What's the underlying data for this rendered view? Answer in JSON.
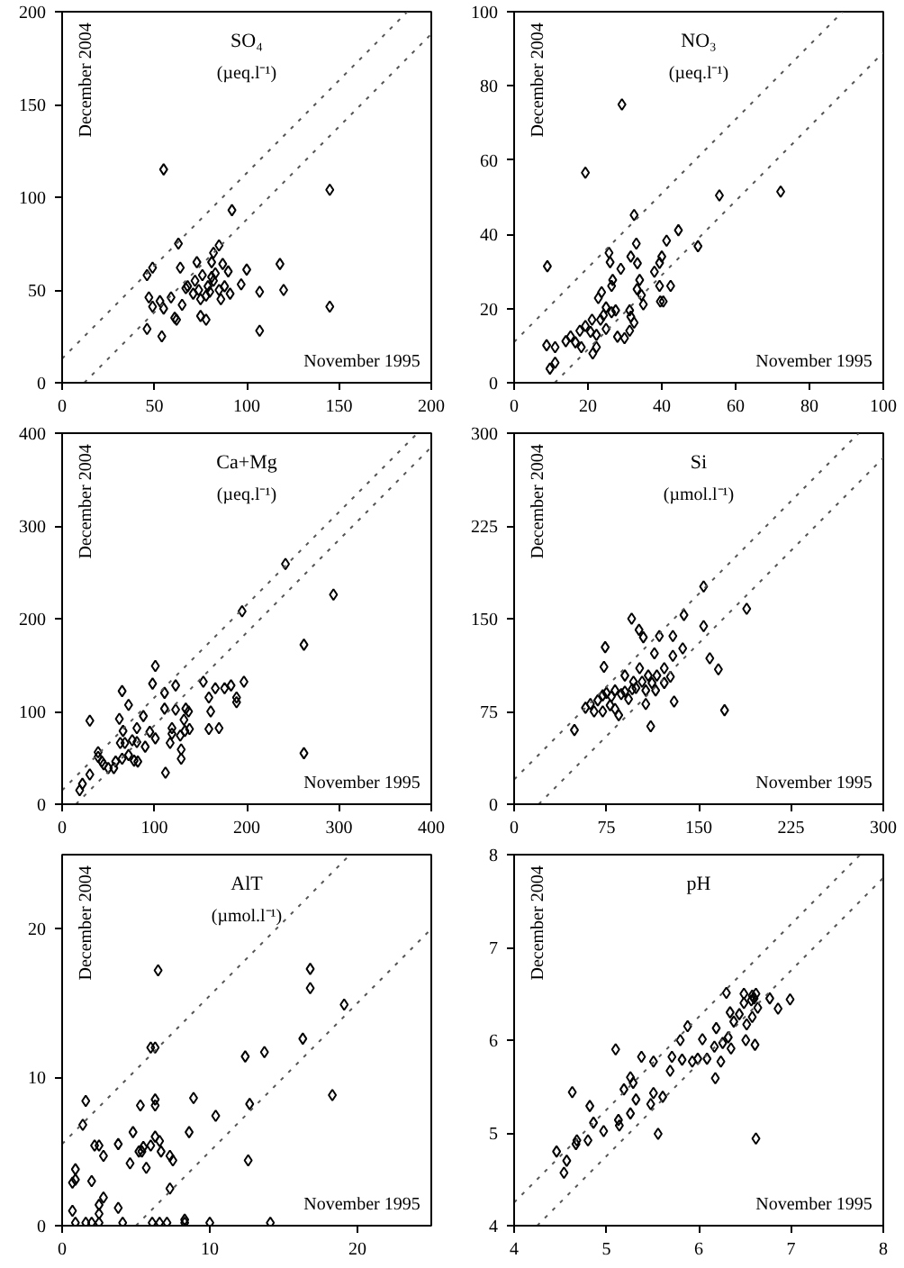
{
  "chart_data": [
    {
      "type": "scatter",
      "title": "SO₄",
      "subtitle": "(µeq.l⁻¹)",
      "xlabel": "November 1995",
      "ylabel": "December 2004",
      "xlim": [
        0,
        200
      ],
      "ylim": [
        0,
        200
      ],
      "xticks": [
        0,
        50,
        100,
        150,
        200
      ],
      "yticks": [
        0,
        50,
        100,
        150,
        200
      ],
      "marker": "diamond",
      "grid": false,
      "series": [
        {
          "color": "#000000",
          "x": [
            55,
            145,
            92,
            63,
            82,
            85,
            49,
            64,
            46,
            73,
            81,
            83,
            90,
            100,
            118,
            97,
            120,
            107,
            145,
            107,
            47,
            49,
            53,
            55,
            59,
            46,
            54,
            61,
            62,
            65,
            68,
            72,
            74,
            75,
            79,
            78,
            75,
            78,
            80,
            82,
            85,
            88,
            86,
            81,
            67,
            76,
            87,
            91,
            71
          ],
          "values": [
            115,
            104,
            93,
            75,
            70,
            74,
            62,
            62,
            58,
            65,
            65,
            59,
            60,
            61,
            64,
            53,
            50,
            49,
            41,
            28,
            46,
            41,
            44,
            40,
            46,
            29,
            25,
            35,
            34,
            42,
            52,
            55,
            50,
            45,
            52,
            47,
            36,
            34,
            49,
            55,
            50,
            52,
            45,
            57,
            51,
            58,
            64,
            48,
            48
          ]
        },
        {
          "type": "line",
          "color": "#555555",
          "line_style": "dotted",
          "marker": "none",
          "x": [
            0,
            187
          ],
          "values": [
            13,
            200
          ]
        },
        {
          "type": "line",
          "color": "#555555",
          "line_style": "dotted",
          "marker": "none",
          "x": [
            12,
            200
          ],
          "values": [
            0,
            188
          ]
        }
      ]
    },
    {
      "type": "scatter",
      "title": "NO₃",
      "subtitle": "(µeq.l⁻¹)",
      "xlabel": "November 1995",
      "ylabel": "December 2004",
      "xlim": [
        0,
        100
      ],
      "ylim": [
        0,
        100
      ],
      "xticks": [
        0,
        20,
        40,
        60,
        80,
        100
      ],
      "yticks": [
        0,
        20,
        40,
        60,
        80,
        100
      ],
      "marker": "diamond",
      "grid": false,
      "series": [
        {
          "color": "#000000",
          "x": [
            9,
            29.2,
            19.3,
            32.5,
            55.6,
            72.2,
            44.5,
            41.3,
            49.8,
            33.1,
            25.7,
            40,
            39.4,
            38,
            31.6,
            33.4,
            28.9,
            26,
            34,
            33.3,
            26.7,
            26.4,
            39.4,
            42.4,
            34.5,
            35,
            39.6,
            40.4,
            23.7,
            22.8,
            31.3,
            31.6,
            32.5,
            26.4,
            24.2,
            23.4,
            21.1,
            19.3,
            20.7,
            17.8,
            15.3,
            14,
            8.8,
            11.1,
            11.1,
            9.7,
            22.3,
            22.3,
            21.3,
            28,
            29.9,
            31.3,
            24.9,
            18.2,
            16.6,
            27.5,
            24.9
          ],
          "values": [
            31.4,
            75,
            56.6,
            45.2,
            50.5,
            51.5,
            41.1,
            38.3,
            36.8,
            37.5,
            35,
            34,
            32.3,
            29.9,
            34,
            32.2,
            30.7,
            32.5,
            27.7,
            25.2,
            27.7,
            26.1,
            26.1,
            26.1,
            23.6,
            21.1,
            21.9,
            21.9,
            24.4,
            22.8,
            19.5,
            17.8,
            16.2,
            19,
            18.2,
            17,
            17,
            15.3,
            13.7,
            14,
            12.5,
            11.2,
            10.1,
            9.6,
            5.4,
            3.8,
            12.9,
            9.6,
            7.9,
            12.4,
            12,
            14,
            14.5,
            9.6,
            10.9,
            19.5,
            20.3
          ]
        },
        {
          "type": "line",
          "color": "#555555",
          "line_style": "dotted",
          "marker": "none",
          "x": [
            0,
            89
          ],
          "values": [
            11,
            100
          ]
        },
        {
          "type": "line",
          "color": "#555555",
          "line_style": "dotted",
          "marker": "none",
          "x": [
            11,
            100
          ],
          "values": [
            0,
            89
          ]
        }
      ]
    },
    {
      "type": "scatter",
      "title": "Ca+Mg",
      "subtitle": "(µeq.l⁻¹)",
      "xlabel": "November 1995",
      "ylabel": "December 2004",
      "xlim": [
        0,
        400
      ],
      "ylim": [
        0,
        400
      ],
      "xticks": [
        0,
        100,
        200,
        300,
        400
      ],
      "yticks": [
        0,
        100,
        200,
        300,
        400
      ],
      "marker": "diamond",
      "grid": false,
      "series": [
        {
          "color": "#000000",
          "x": [
            242,
            294,
            195,
            262,
            262,
            101,
            98,
            153,
            197,
            166,
            183,
            176,
            189,
            189,
            65,
            72,
            30,
            62,
            111,
            123,
            111,
            123,
            134,
            132,
            137,
            138,
            119,
            119,
            117,
            101,
            95,
            90,
            66,
            76,
            81,
            81,
            68,
            63,
            72,
            78,
            82,
            65,
            58,
            43,
            39,
            39,
            45,
            56,
            50,
            30,
            22,
            19,
            112,
            129,
            128,
            129,
            159,
            159,
            170,
            161,
            133,
            88
          ],
          "values": [
            259,
            226,
            208,
            172,
            55,
            149,
            130,
            132,
            132,
            125,
            128,
            125,
            115,
            110,
            122,
            107,
            90,
            92,
            120,
            128,
            103,
            102,
            103,
            91,
            100,
            81,
            82,
            76,
            66,
            71,
            78,
            62,
            79,
            69,
            82,
            67,
            66,
            66,
            53,
            47,
            46,
            49,
            46,
            46,
            56,
            51,
            43,
            39,
            39,
            32,
            22,
            15,
            34,
            59,
            74,
            49,
            115,
            81,
            82,
            100,
            79,
            95
          ]
        },
        {
          "type": "line",
          "color": "#555555",
          "line_style": "dotted",
          "marker": "none",
          "x": [
            0,
            385
          ],
          "values": [
            15,
            400
          ]
        },
        {
          "type": "line",
          "color": "#555555",
          "line_style": "dotted",
          "marker": "none",
          "x": [
            15,
            400
          ],
          "values": [
            0,
            385
          ]
        }
      ]
    },
    {
      "type": "scatter",
      "title": "Si",
      "subtitle": "(µmol.l⁻¹)",
      "xlabel": "November 1995",
      "ylabel": "December 2004",
      "xlim": [
        0,
        300
      ],
      "ylim": [
        0,
        300
      ],
      "xticks": [
        0,
        75,
        150,
        225,
        300
      ],
      "yticks": [
        0,
        75,
        150,
        225,
        300
      ],
      "marker": "diamond",
      "grid": false,
      "series": [
        {
          "color": "#000000",
          "x": [
            154,
            189,
            138,
            95.5,
            74,
            101.5,
            105,
            154,
            118,
            129,
            137,
            114,
            159,
            166,
            73,
            129,
            90,
            102,
            122,
            127,
            122,
            116,
            109,
            97,
            104,
            112,
            107,
            96,
            90,
            82,
            75,
            72,
            79,
            87,
            68,
            62,
            65,
            72,
            78,
            82,
            85,
            93,
            107,
            130,
            171,
            111,
            58,
            49,
            99,
            115
          ],
          "values": [
            176,
            158,
            153,
            150,
            127,
            141,
            135,
            144,
            136,
            136,
            126,
            122,
            118,
            109,
            111,
            120,
            104,
            110,
            110,
            103,
            98,
            104,
            104,
            99,
            99,
            98,
            92,
            93,
            91,
            92,
            90,
            88,
            87,
            89,
            84,
            81,
            75,
            75,
            80,
            77,
            72,
            85,
            81,
            83,
            76,
            63,
            78,
            60,
            94,
            92
          ]
        },
        {
          "type": "line",
          "color": "#555555",
          "line_style": "dotted",
          "marker": "none",
          "x": [
            0,
            280
          ],
          "values": [
            20,
            300
          ]
        },
        {
          "type": "line",
          "color": "#555555",
          "line_style": "dotted",
          "marker": "none",
          "x": [
            20,
            300
          ],
          "values": [
            0,
            280
          ]
        }
      ]
    },
    {
      "type": "scatter",
      "title": "AlT",
      "subtitle": "(µmol.l⁻¹)",
      "xlabel": "November 1995",
      "ylabel": "December 2004",
      "xlim": [
        0,
        25
      ],
      "ylim": [
        0,
        25
      ],
      "xticks": [
        0,
        10,
        20
      ],
      "yticks": [
        0,
        10,
        20
      ],
      "marker": "diamond",
      "grid": false,
      "series": [
        {
          "color": "#000000",
          "x": [
            6.5,
            16.8,
            16.8,
            19.1,
            16.3,
            18.3,
            12.4,
            13.7,
            8.9,
            6,
            6.3,
            12.7,
            10.4,
            8.6,
            12.6,
            1.6,
            1.4,
            0.9,
            0.7,
            0.9,
            2,
            0.7,
            2.2,
            2.5,
            2.8,
            3.8,
            4.8,
            5.3,
            6.3,
            6.3,
            4.6,
            5.2,
            5.5,
            5.4,
            6,
            6.3,
            6.6,
            6.7,
            7.3,
            7.5,
            5.7,
            7.3,
            2.8,
            2.5,
            2.5,
            3.8,
            0.9,
            1.6,
            2,
            2.5,
            4.1,
            6.1,
            6.6,
            7.1,
            8.3,
            10,
            14.1,
            8.3
          ],
          "values": [
            17.2,
            17.3,
            16,
            14.9,
            12.6,
            8.8,
            11.4,
            11.7,
            8.6,
            12,
            12,
            8.2,
            7.4,
            6.3,
            4.4,
            8.4,
            6.8,
            3.8,
            2.9,
            3.1,
            3,
            1,
            5.4,
            5.4,
            4.7,
            5.5,
            6.3,
            8.1,
            8.5,
            8.1,
            4.2,
            5,
            5.3,
            5,
            5.4,
            6,
            5.7,
            5,
            4.7,
            4.4,
            3.9,
            2.5,
            1.9,
            1.4,
            0.8,
            1.2,
            0.2,
            0.2,
            0.2,
            0.2,
            0.2,
            0.2,
            0.2,
            0.2,
            0.2,
            0.2,
            0.2,
            0.4
          ]
        },
        {
          "type": "line",
          "color": "#555555",
          "line_style": "dotted",
          "marker": "none",
          "x": [
            0,
            19.5
          ],
          "values": [
            5.5,
            25
          ]
        },
        {
          "type": "line",
          "color": "#555555",
          "line_style": "dotted",
          "marker": "none",
          "x": [
            5,
            25
          ],
          "values": [
            0,
            20
          ]
        }
      ]
    },
    {
      "type": "scatter",
      "title": "pH",
      "xlabel": "November 1995",
      "ylabel": "December 2004",
      "xlim": [
        4,
        8
      ],
      "ylim": [
        4,
        8
      ],
      "xticks": [
        4,
        5,
        6,
        7,
        8
      ],
      "yticks": [
        4,
        5,
        6,
        7,
        8
      ],
      "marker": "diamond",
      "grid": false,
      "series": [
        {
          "color": "#000000",
          "x": [
            4.46,
            4.54,
            4.57,
            4.63,
            4.68,
            4.67,
            4.8,
            4.82,
            4.86,
            4.97,
            5.1,
            5.13,
            5.14,
            5.19,
            5.26,
            5.26,
            5.29,
            5.32,
            5.38,
            5.48,
            5.51,
            5.51,
            5.56,
            5.61,
            5.69,
            5.71,
            5.8,
            5.82,
            5.88,
            5.93,
            5.99,
            6.04,
            6.09,
            6.17,
            6.18,
            6.19,
            6.24,
            6.26,
            6.3,
            6.32,
            6.34,
            6.35,
            6.38,
            6.44,
            6.49,
            6.49,
            6.51,
            6.52,
            6.57,
            6.58,
            6.6,
            6.62,
            6.61,
            6.64,
            6.62,
            6.77,
            6.86,
            6.99,
            6.58
          ],
          "values": [
            4.8,
            4.57,
            4.7,
            5.44,
            4.92,
            4.88,
            4.92,
            5.29,
            5.11,
            5.02,
            5.9,
            5.14,
            5.08,
            5.47,
            5.6,
            5.21,
            5.54,
            5.36,
            5.82,
            5.31,
            5.43,
            5.77,
            4.99,
            5.39,
            5.67,
            5.82,
            6,
            5.79,
            6.15,
            5.77,
            5.8,
            6.01,
            5.8,
            5.93,
            5.59,
            6.13,
            5.77,
            5.97,
            6.51,
            6.03,
            6.3,
            5.91,
            6.2,
            6.28,
            6.4,
            6.5,
            6,
            6.17,
            6.43,
            6.25,
            6.45,
            6.5,
            5.95,
            6.35,
            4.94,
            6.45,
            6.34,
            6.44,
            6.48
          ]
        },
        {
          "type": "line",
          "color": "#555555",
          "line_style": "dotted",
          "marker": "none",
          "x": [
            4,
            7.75
          ],
          "values": [
            4.25,
            8
          ]
        },
        {
          "type": "line",
          "color": "#555555",
          "line_style": "dotted",
          "marker": "none",
          "x": [
            4.25,
            8
          ],
          "values": [
            4,
            7.75
          ]
        }
      ]
    }
  ]
}
